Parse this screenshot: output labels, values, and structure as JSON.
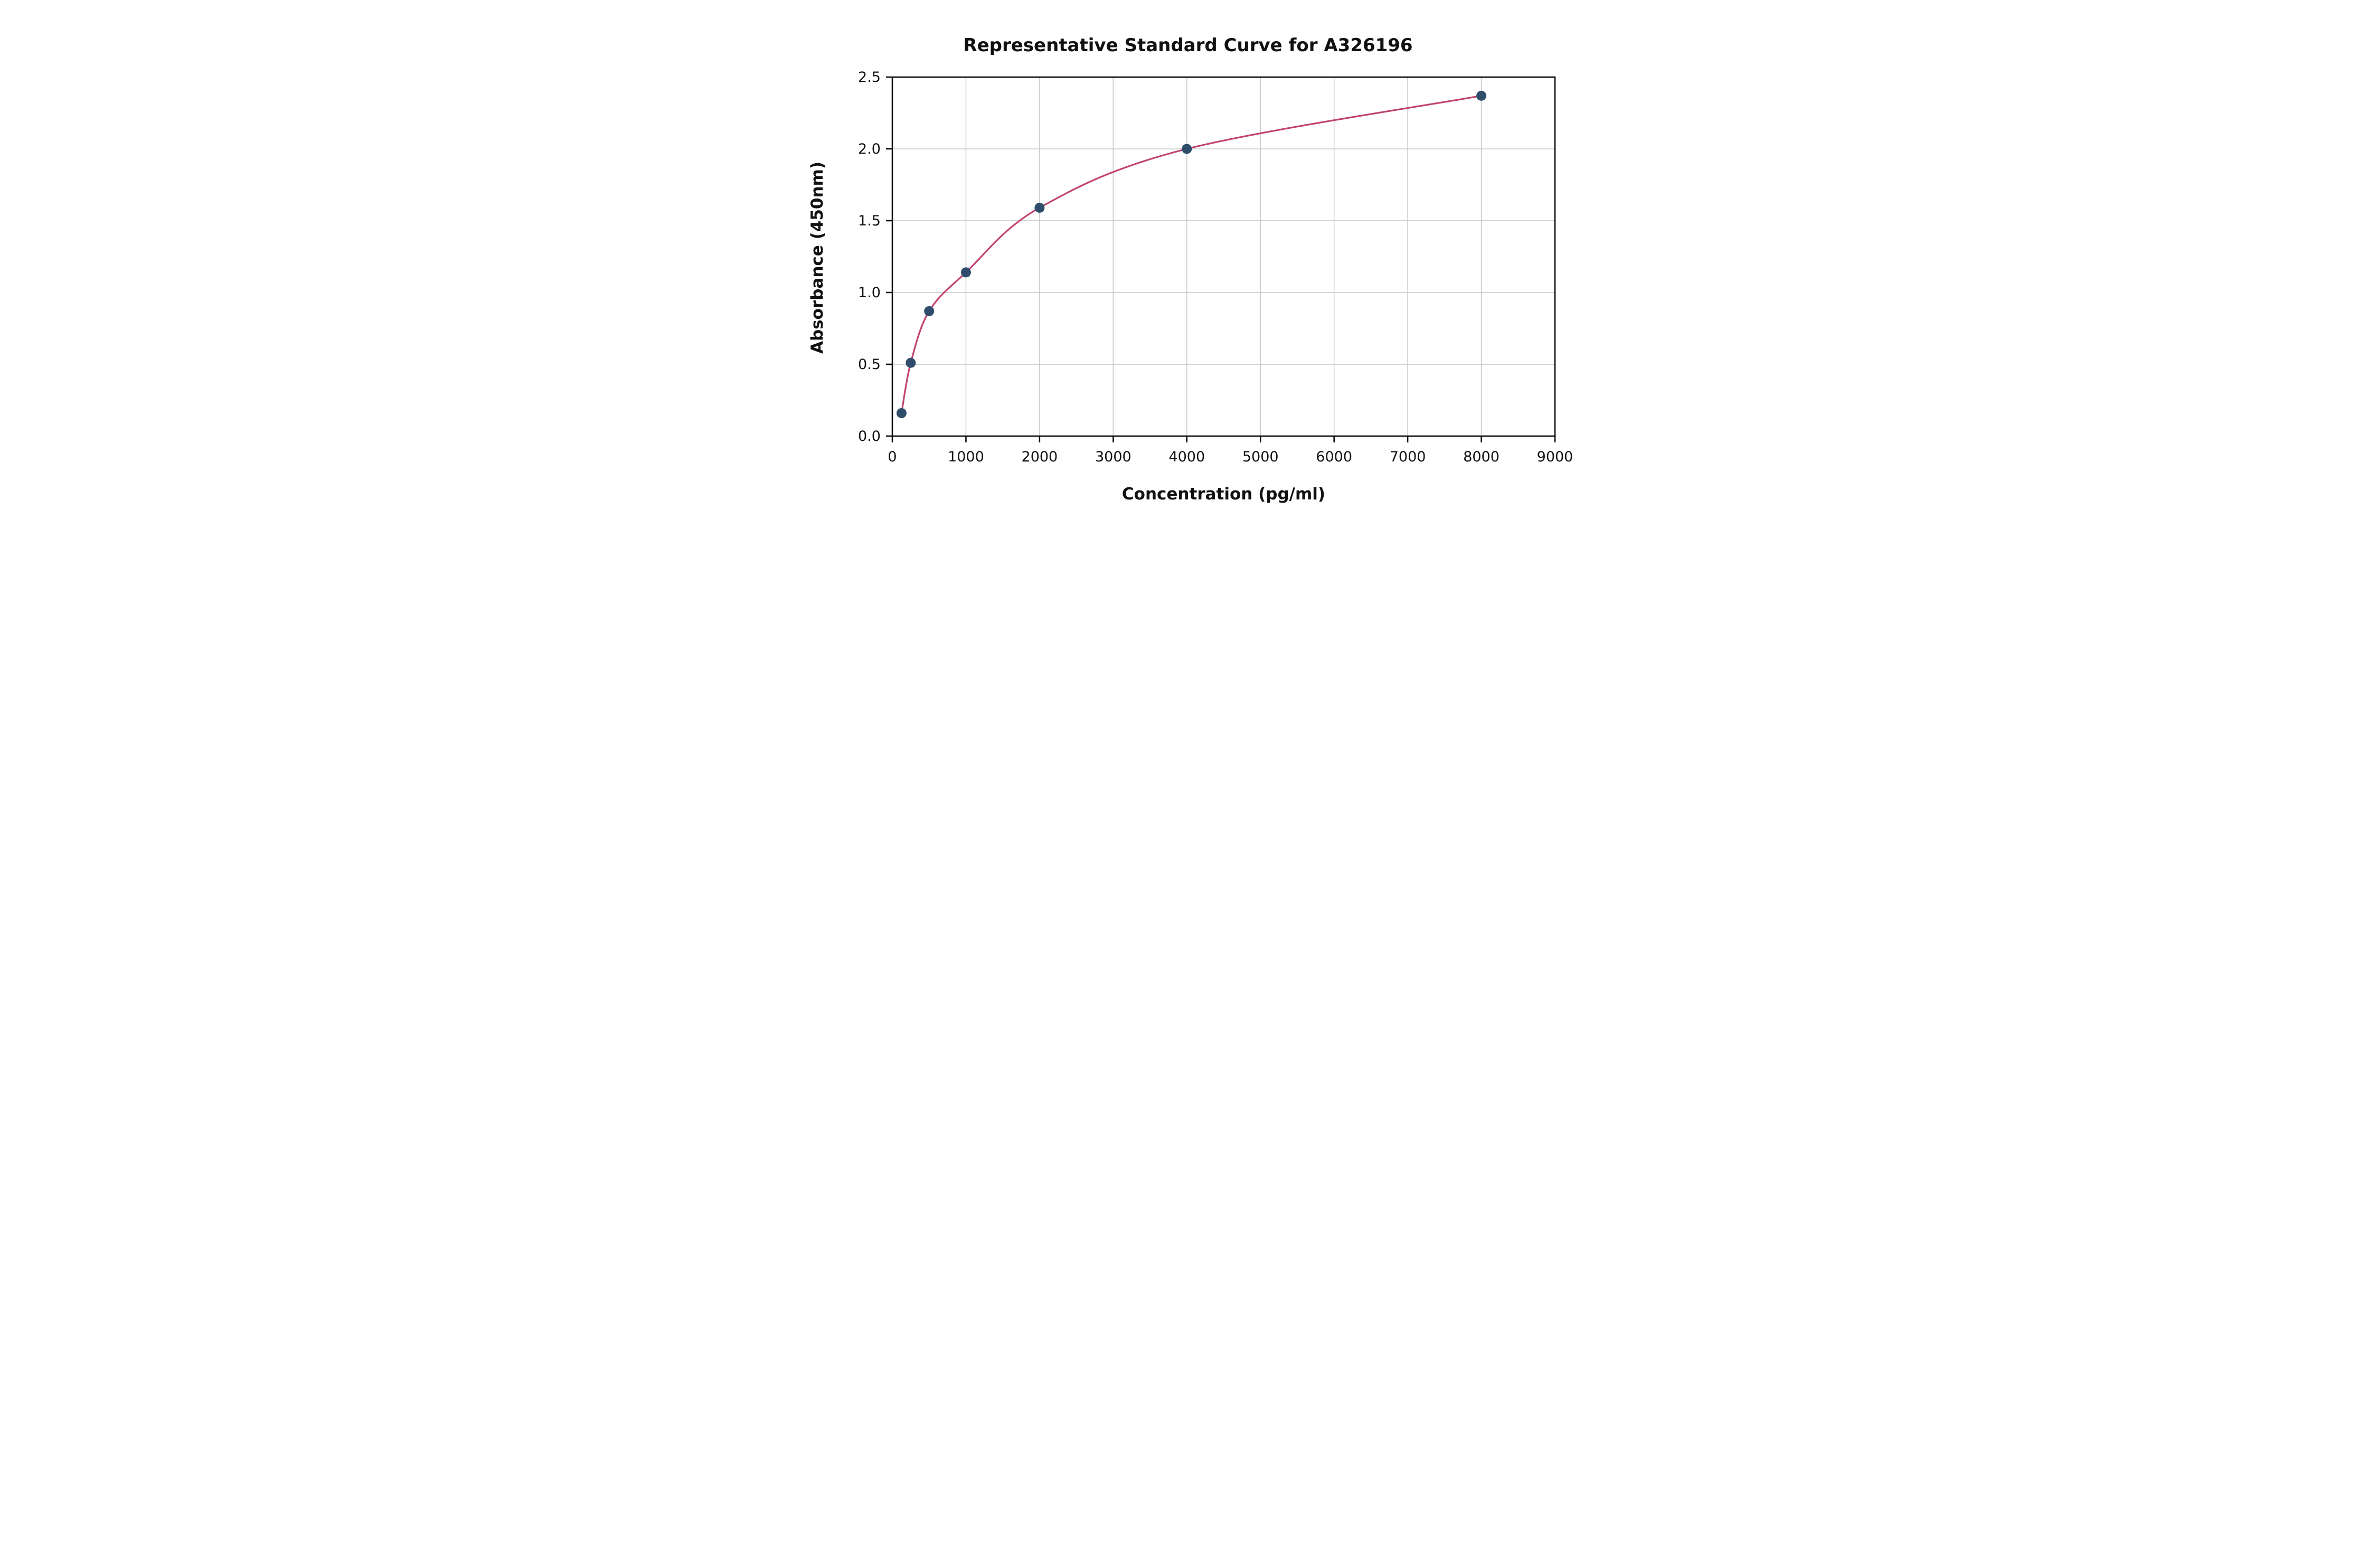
{
  "chart_data": {
    "type": "scatter",
    "title": "Representative Standard Curve for A326196",
    "xlabel": "Concentration (pg/ml)",
    "ylabel": "Absorbance (450nm)",
    "xlim": [
      0,
      9000
    ],
    "ylim": [
      0,
      2.5
    ],
    "x_ticks": [
      0,
      1000,
      2000,
      3000,
      4000,
      5000,
      6000,
      7000,
      8000,
      9000
    ],
    "y_ticks": [
      0.0,
      0.5,
      1.0,
      1.5,
      2.0,
      2.5
    ],
    "grid": true,
    "legend": "none",
    "points": {
      "x": [
        125,
        250,
        500,
        1000,
        2000,
        4000,
        8000
      ],
      "y": [
        0.16,
        0.51,
        0.87,
        1.14,
        1.59,
        2.0,
        2.37
      ]
    },
    "colors": {
      "curve": "#c14372",
      "point": "#2f4d6b",
      "grid": "#c8c8c8",
      "axis": "#000000"
    }
  }
}
